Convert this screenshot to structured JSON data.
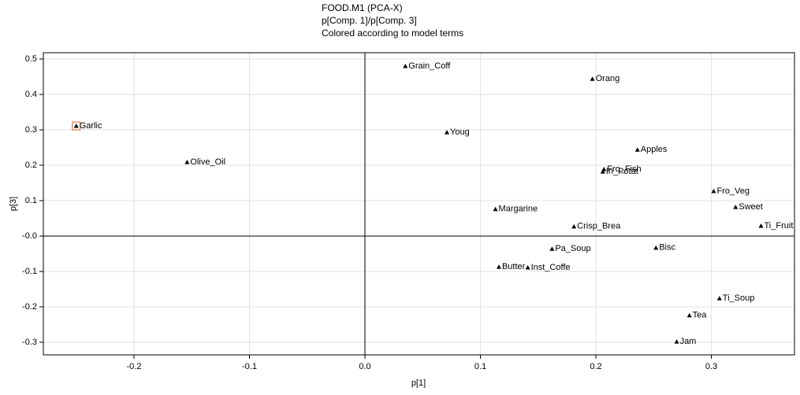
{
  "chart_data": {
    "type": "scatter",
    "title": "FOOD.M1 (PCA-X)",
    "subtitle": "p[Comp. 1]/p[Comp. 3]",
    "annotation": "Colored according to model terms",
    "x_label": "p[1]",
    "y_label": "p[3]",
    "labels": [
      "Garlic",
      "Olive_Oil",
      "Grain_Coff",
      "Orang",
      "Youg",
      "Apples",
      "Fro_Fish",
      "In_Potat",
      "Fro_Veg",
      "Sweet",
      "Margarine",
      "Ti_Fruit",
      "Crisp_Brea",
      "Pa_Soup",
      "Bisc",
      "Butter",
      "Inst_Coffe",
      "Ti_Soup",
      "Tea",
      "Jam"
    ],
    "x": [
      -0.25,
      -0.154,
      0.035,
      0.197,
      0.071,
      0.236,
      0.207,
      0.206,
      0.302,
      0.321,
      0.113,
      0.343,
      0.181,
      0.162,
      0.252,
      0.116,
      0.141,
      0.307,
      0.281,
      0.27
    ],
    "values": [
      0.311,
      0.209,
      0.48,
      0.444,
      0.293,
      0.244,
      0.189,
      0.182,
      0.127,
      0.082,
      0.076,
      0.029,
      0.027,
      -0.036,
      -0.033,
      -0.087,
      -0.089,
      -0.176,
      -0.224,
      -0.298
    ],
    "color": "#000000",
    "xlim": [
      -0.2785,
      0.372
    ],
    "ylim": [
      -0.3356,
      0.5178
    ],
    "xticks": [
      -0.2,
      -0.1,
      {
        "value": 0,
        "label": "0.0"
      },
      0.1,
      0.2,
      0.3
    ],
    "yticks": [
      -0.3,
      -0.2,
      -0.1,
      {
        "value": 0,
        "label": "-0.0"
      },
      0.1,
      0.2,
      0.3,
      0.4,
      0.5
    ],
    "grid": true
  }
}
